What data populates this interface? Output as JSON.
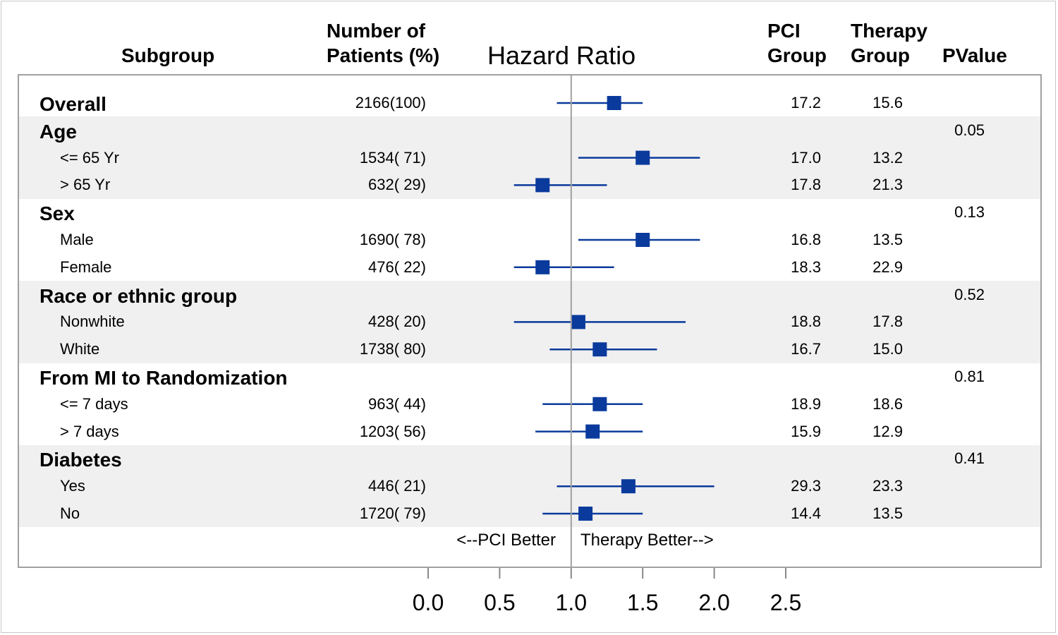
{
  "headers": {
    "subgroup": "Subgroup",
    "patients_line1": "Number of",
    "patients_line2": "Patients (%)",
    "hazard_ratio": "Hazard Ratio",
    "pci_line1": "PCI",
    "pci_line2": "Group",
    "therapy_line1": "Therapy",
    "therapy_line2": "Group",
    "pvalue": "PValue"
  },
  "annotations": {
    "left": "<--PCI Better",
    "right": "Therapy Better-->"
  },
  "colors": {
    "marker": "#0a3a9c",
    "band": "#f0f0f0",
    "reference_line": "#a0a0a0"
  },
  "chart_data": {
    "type": "forest",
    "title": "Hazard Ratio",
    "x_ticks": [
      "0.0",
      "0.5",
      "1.0",
      "1.5",
      "2.0",
      "2.5"
    ],
    "xlim": [
      0,
      2.5
    ],
    "reference_line": 1.0,
    "rows": [
      {
        "label": "Overall",
        "level": 0,
        "patients": "2166(100)",
        "hr": 1.3,
        "lo": 0.9,
        "hi": 1.5,
        "pci": "17.2",
        "therapy": "15.6",
        "pvalue": "",
        "band": false
      },
      {
        "label": "Age",
        "level": 0,
        "patients": "",
        "hr": null,
        "lo": null,
        "hi": null,
        "pci": "",
        "therapy": "",
        "pvalue": "0.05",
        "band": true
      },
      {
        "label": "<= 65 Yr",
        "level": 1,
        "patients": "1534( 71)",
        "hr": 1.5,
        "lo": 1.05,
        "hi": 1.9,
        "pci": "17.0",
        "therapy": "13.2",
        "pvalue": "",
        "band": true
      },
      {
        "label": "> 65 Yr",
        "level": 1,
        "patients": "632( 29)",
        "hr": 0.8,
        "lo": 0.6,
        "hi": 1.25,
        "pci": "17.8",
        "therapy": "21.3",
        "pvalue": "",
        "band": true
      },
      {
        "label": "Sex",
        "level": 0,
        "patients": "",
        "hr": null,
        "lo": null,
        "hi": null,
        "pci": "",
        "therapy": "",
        "pvalue": "0.13",
        "band": false
      },
      {
        "label": "Male",
        "level": 1,
        "patients": "1690( 78)",
        "hr": 1.5,
        "lo": 1.05,
        "hi": 1.9,
        "pci": "16.8",
        "therapy": "13.5",
        "pvalue": "",
        "band": false
      },
      {
        "label": "Female",
        "level": 1,
        "patients": "476( 22)",
        "hr": 0.8,
        "lo": 0.6,
        "hi": 1.3,
        "pci": "18.3",
        "therapy": "22.9",
        "pvalue": "",
        "band": false
      },
      {
        "label": "Race or ethnic group",
        "level": 0,
        "patients": "",
        "hr": null,
        "lo": null,
        "hi": null,
        "pci": "",
        "therapy": "",
        "pvalue": "0.52",
        "band": true
      },
      {
        "label": "Nonwhite",
        "level": 1,
        "patients": "428( 20)",
        "hr": 1.05,
        "lo": 0.6,
        "hi": 1.8,
        "pci": "18.8",
        "therapy": "17.8",
        "pvalue": "",
        "band": true
      },
      {
        "label": "White",
        "level": 1,
        "patients": "1738( 80)",
        "hr": 1.2,
        "lo": 0.85,
        "hi": 1.6,
        "pci": "16.7",
        "therapy": "15.0",
        "pvalue": "",
        "band": true
      },
      {
        "label": "From MI to Randomization",
        "level": 0,
        "patients": "",
        "hr": null,
        "lo": null,
        "hi": null,
        "pci": "",
        "therapy": "",
        "pvalue": "0.81",
        "band": false
      },
      {
        "label": "<= 7 days",
        "level": 1,
        "patients": "963( 44)",
        "hr": 1.2,
        "lo": 0.8,
        "hi": 1.5,
        "pci": "18.9",
        "therapy": "18.6",
        "pvalue": "",
        "band": false
      },
      {
        "label": "> 7 days",
        "level": 1,
        "patients": "1203( 56)",
        "hr": 1.15,
        "lo": 0.75,
        "hi": 1.5,
        "pci": "15.9",
        "therapy": "12.9",
        "pvalue": "",
        "band": false
      },
      {
        "label": "Diabetes",
        "level": 0,
        "patients": "",
        "hr": null,
        "lo": null,
        "hi": null,
        "pci": "",
        "therapy": "",
        "pvalue": "0.41",
        "band": true
      },
      {
        "label": "Yes",
        "level": 1,
        "patients": "446( 21)",
        "hr": 1.4,
        "lo": 0.9,
        "hi": 2.0,
        "pci": "29.3",
        "therapy": "23.3",
        "pvalue": "",
        "band": true
      },
      {
        "label": "No",
        "level": 1,
        "patients": "1720( 79)",
        "hr": 1.1,
        "lo": 0.8,
        "hi": 1.5,
        "pci": "14.4",
        "therapy": "13.5",
        "pvalue": "",
        "band": true
      }
    ]
  }
}
